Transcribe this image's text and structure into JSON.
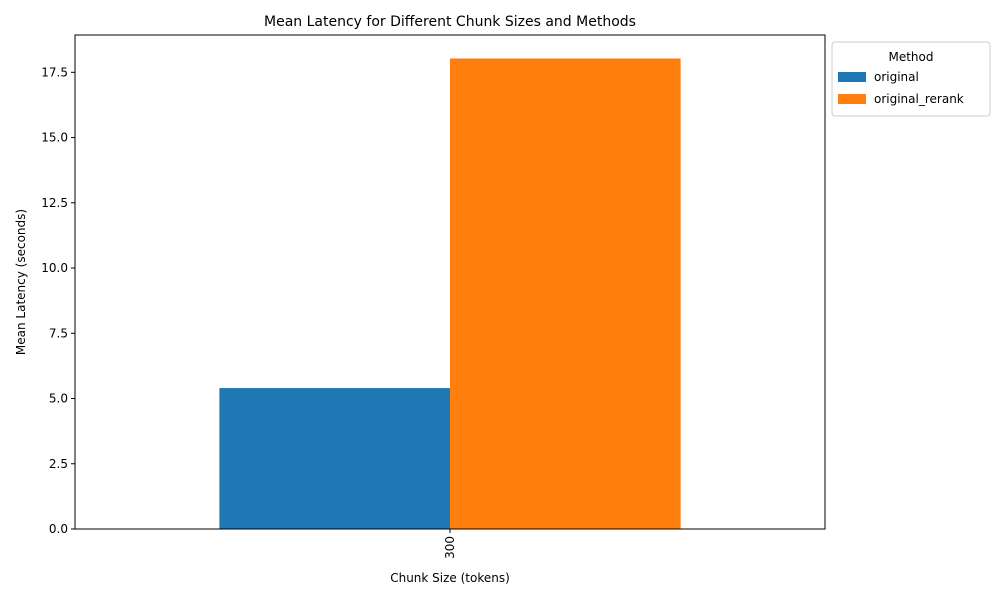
{
  "chart_data": {
    "type": "bar",
    "title": "Mean Latency for Different Chunk Sizes and Methods",
    "xlabel": "Chunk Size (tokens)",
    "ylabel": "Mean Latency (seconds)",
    "categories": [
      "300"
    ],
    "series": [
      {
        "name": "original",
        "values": [
          5.4
        ],
        "color": "#1f77b4"
      },
      {
        "name": "original_rerank",
        "values": [
          18.03
        ],
        "color": "#ff7f0e"
      }
    ],
    "ylim": [
      0,
      18.93
    ],
    "yticks": [
      "0.0",
      "2.5",
      "5.0",
      "7.5",
      "10.0",
      "12.5",
      "15.0",
      "17.5"
    ],
    "legend": {
      "title": "Method",
      "placement": "outside-top-right"
    },
    "grid": false,
    "x_tick_rotation": "vertical"
  }
}
